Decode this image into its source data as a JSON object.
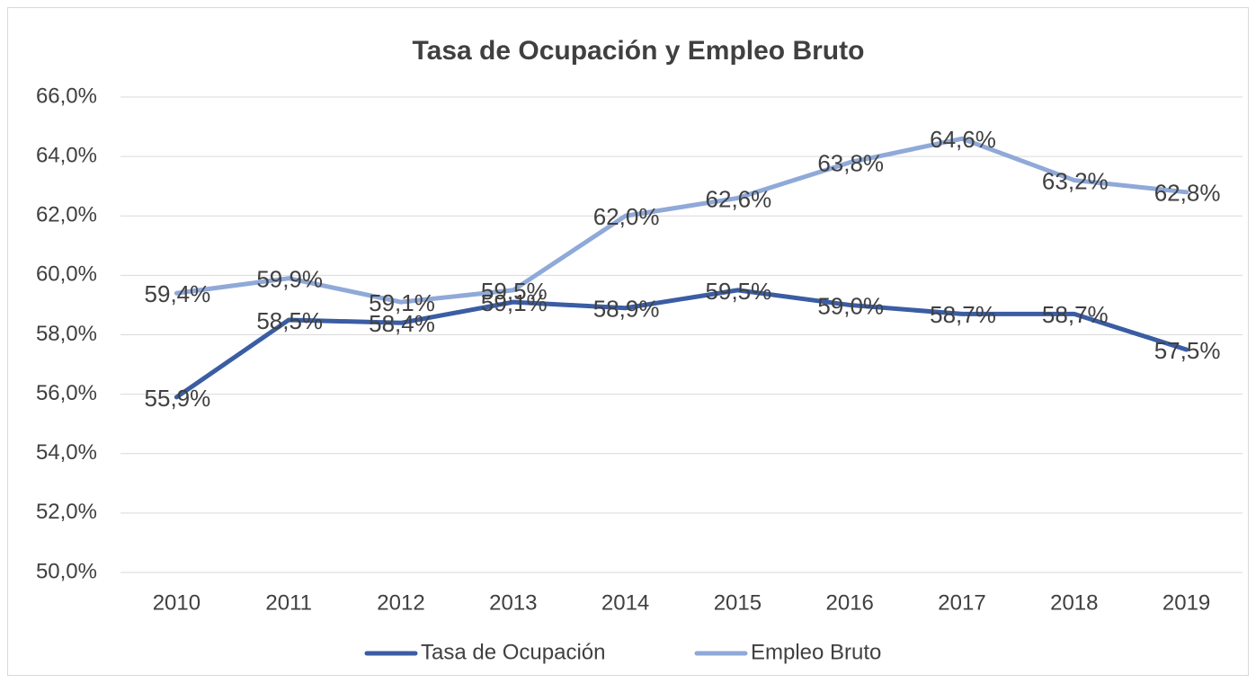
{
  "chart_data": {
    "type": "line",
    "title": "Tasa de Ocupación y Empleo Bruto",
    "categories": [
      "2010",
      "2011",
      "2012",
      "2013",
      "2014",
      "2015",
      "2016",
      "2017",
      "2018",
      "2019"
    ],
    "series": [
      {
        "name": "Tasa de Ocupación",
        "color": "#3a5da3",
        "values": [
          55.9,
          58.5,
          58.4,
          59.1,
          58.9,
          59.5,
          59.0,
          58.7,
          58.7,
          57.5
        ],
        "value_labels": [
          "55,9%",
          "58,5%",
          "58,4%",
          "59,1%",
          "58,9%",
          "59,5%",
          "59,0%",
          "58,7%",
          "58,7%",
          "57,5%"
        ]
      },
      {
        "name": "Empleo Bruto",
        "color": "#8fa9d8",
        "values": [
          59.4,
          59.9,
          59.1,
          59.5,
          62.0,
          62.6,
          63.8,
          64.6,
          63.2,
          62.8
        ],
        "value_labels": [
          "59,4%",
          "59,9%",
          "59,1%",
          "59,5%",
          "62,0%",
          "62,6%",
          "63,8%",
          "64,6%",
          "63,2%",
          "62,8%"
        ]
      }
    ],
    "ylim": [
      50,
      66
    ],
    "yticks": [
      {
        "value": 50,
        "label": "50,0%"
      },
      {
        "value": 52,
        "label": "52,0%"
      },
      {
        "value": 54,
        "label": "54,0%"
      },
      {
        "value": 56,
        "label": "56,0%"
      },
      {
        "value": 58,
        "label": "58,0%"
      },
      {
        "value": 60,
        "label": "60,0%"
      },
      {
        "value": 62,
        "label": "62,0%"
      },
      {
        "value": 64,
        "label": "64,0%"
      },
      {
        "value": 66,
        "label": "66,0%"
      }
    ],
    "grid": true,
    "legend": "bottom"
  }
}
